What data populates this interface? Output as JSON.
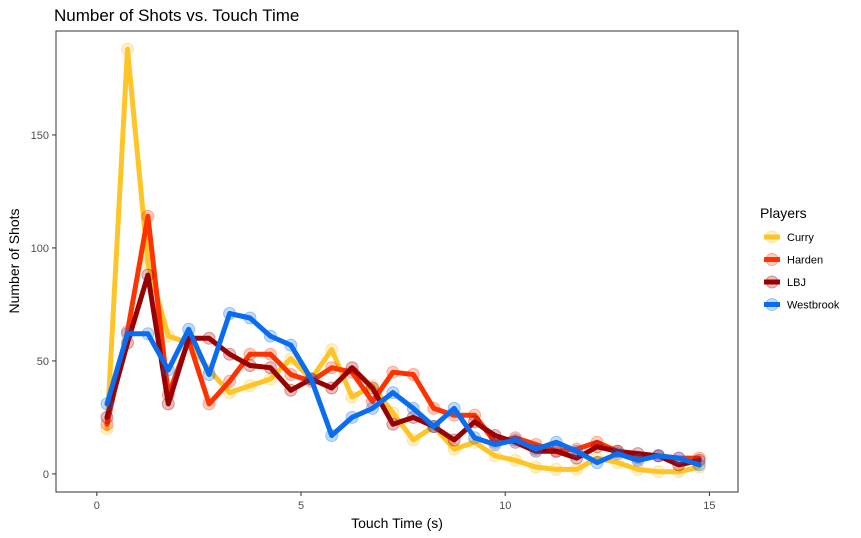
{
  "chart_data": {
    "type": "line",
    "title": "Number of Shots vs. Touch Time",
    "xlabel": "Touch Time (s)",
    "ylabel": "Number of Shots",
    "xlim": [
      -1.0,
      15.7
    ],
    "ylim": [
      -8,
      196
    ],
    "xticks": [
      0,
      5,
      10,
      15
    ],
    "yticks": [
      0,
      50,
      100,
      150
    ],
    "grid": false,
    "legend_title": "Players",
    "legend_position": "right",
    "x": [
      0.25,
      0.75,
      1.25,
      1.75,
      2.25,
      2.75,
      3.25,
      3.75,
      4.25,
      4.75,
      5.25,
      5.75,
      6.25,
      6.75,
      7.25,
      7.75,
      8.25,
      8.75,
      9.25,
      9.75,
      10.25,
      10.75,
      11.25,
      11.75,
      12.25,
      12.75,
      13.25,
      13.75,
      14.25,
      14.75
    ],
    "series": [
      {
        "name": "Curry",
        "color": "#FFC425",
        "values": [
          20,
          188,
          93,
          61,
          58,
          46,
          36,
          39,
          42,
          51,
          42,
          55,
          34,
          39,
          27,
          15,
          21,
          11,
          14,
          8,
          6,
          3,
          2,
          2,
          7,
          5,
          2,
          1,
          1,
          3
        ]
      },
      {
        "name": "Harden",
        "color": "#FF3300",
        "values": [
          22,
          63,
          114,
          35,
          59,
          31,
          41,
          53,
          53,
          44,
          41,
          47,
          45,
          32,
          45,
          44,
          29,
          26,
          26,
          14,
          16,
          13,
          10,
          11,
          14,
          10,
          7,
          8,
          7,
          7
        ]
      },
      {
        "name": "LBJ",
        "color": "#990000",
        "values": [
          25,
          58,
          88,
          31,
          60,
          60,
          53,
          48,
          47,
          37,
          42,
          38,
          47,
          38,
          22,
          25,
          21,
          15,
          23,
          17,
          14,
          10,
          10,
          7,
          12,
          10,
          9,
          8,
          4,
          6
        ]
      },
      {
        "name": "Westbrook",
        "color": "#0A6CF0",
        "values": [
          31,
          62,
          62,
          46,
          64,
          44,
          71,
          69,
          61,
          57,
          42,
          17,
          25,
          29,
          36,
          29,
          21,
          29,
          16,
          13,
          15,
          11,
          14,
          10,
          5,
          9,
          6,
          8,
          7,
          4
        ]
      }
    ]
  }
}
